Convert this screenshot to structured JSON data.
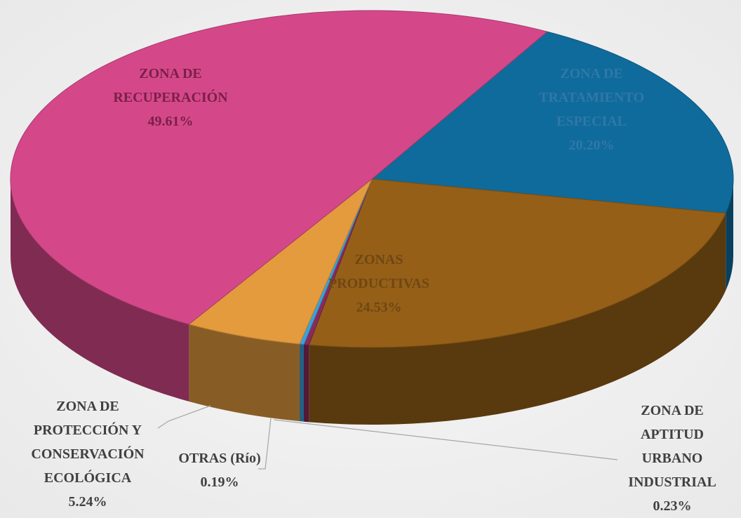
{
  "chart_data": {
    "type": "pie3d",
    "categories": [
      "ZONA DE TRATAMIENTO ESPECIAL",
      "ZONAS PRODUCTIVAS",
      "ZONA DE APTITUD URBANO INDUSTRIAL",
      "OTRAS (Río)",
      "ZONA DE PROTECCIÓN Y CONSERVACIÓN ECOLÓGICA",
      "ZONA DE RECUPERACIÓN"
    ],
    "values": [
      20.2,
      24.53,
      0.23,
      0.19,
      5.24,
      49.61
    ],
    "value_labels": [
      "20.20%",
      "24.53%",
      "0.23%",
      "0.19%",
      "5.24%",
      "49.61%"
    ],
    "colors": [
      "#0f6b9b",
      "#955f17",
      "#8a2a5c",
      "#3aa2da",
      "#e39b3d",
      "#d44889"
    ]
  }
}
